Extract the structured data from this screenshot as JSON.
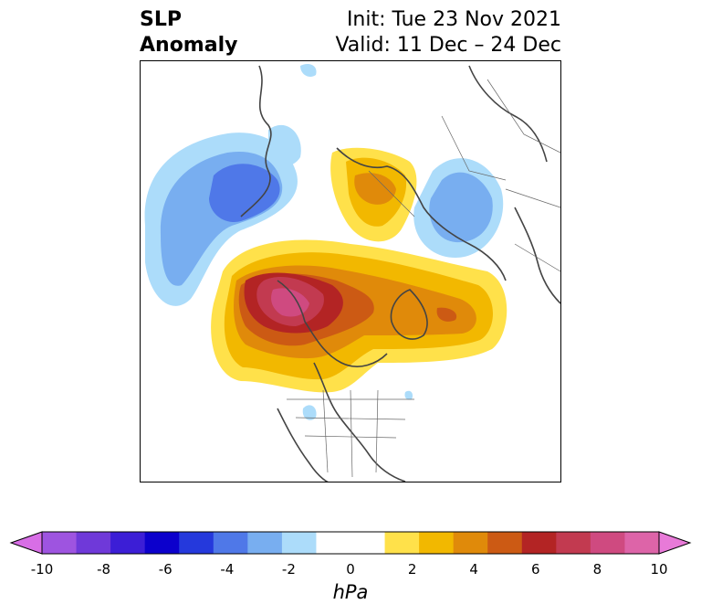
{
  "title": {
    "left_line1": "SLP",
    "left_line2": "Anomaly",
    "right_line1": "Init: Tue 23 Nov 2021",
    "right_line2": "Valid: 11 Dec – 24 Dec"
  },
  "colorbar": {
    "unit": "hPa",
    "ticks": [
      "-10",
      "-8",
      "-6",
      "-4",
      "-2",
      "0",
      "2",
      "4",
      "6",
      "8",
      "10"
    ],
    "colors": [
      "#d86ee6",
      "#9e54e0",
      "#6f39d9",
      "#3c1ed6",
      "#0c00cc",
      "#2539dc",
      "#4f78e8",
      "#78aef0",
      "#acdcfa",
      "#ffffff",
      "#ffffff",
      "#ffe14a",
      "#f2b800",
      "#e08a0a",
      "#cc5a14",
      "#b32424",
      "#c23a50",
      "#cf4a80",
      "#dd64a8",
      "#e87ad8"
    ]
  },
  "map": {
    "projection": "north polar stereographic",
    "features": [
      "SLP anomaly shading",
      "coastlines",
      "country borders",
      "US state borders"
    ]
  }
}
